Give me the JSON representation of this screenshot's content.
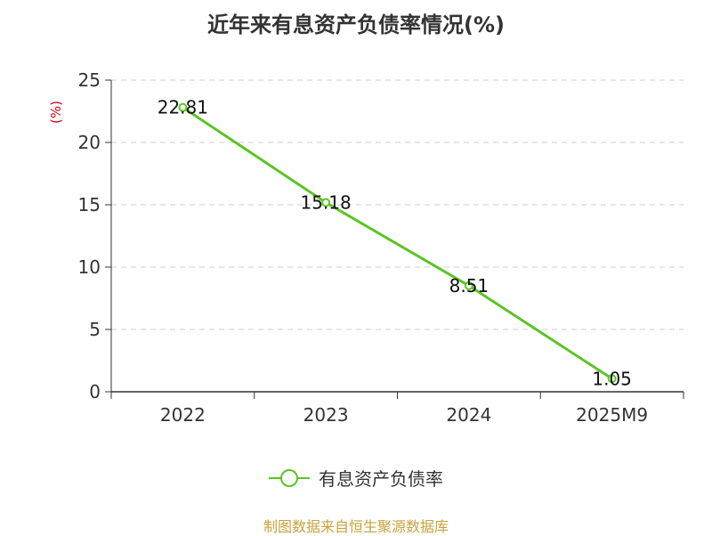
{
  "chart_data": {
    "type": "line",
    "title": "近年来有息资产负债率情况(%)",
    "ylabel": "(%)",
    "xlabel": "",
    "categories": [
      "2022",
      "2023",
      "2024",
      "2025M9"
    ],
    "series": [
      {
        "name": "有息资产负债率",
        "values": [
          22.81,
          15.18,
          8.51,
          1.05
        ]
      }
    ],
    "ylim": [
      0,
      25
    ],
    "yticks": [
      0,
      5,
      10,
      15,
      20,
      25
    ],
    "grid": true,
    "legend_position": "bottom",
    "colors": {
      "line": "#5cc424",
      "ylabel": "#d0021b",
      "grid": "#cccccc",
      "source": "#c8a23c"
    }
  },
  "source": "制图数据来自恒生聚源数据库"
}
